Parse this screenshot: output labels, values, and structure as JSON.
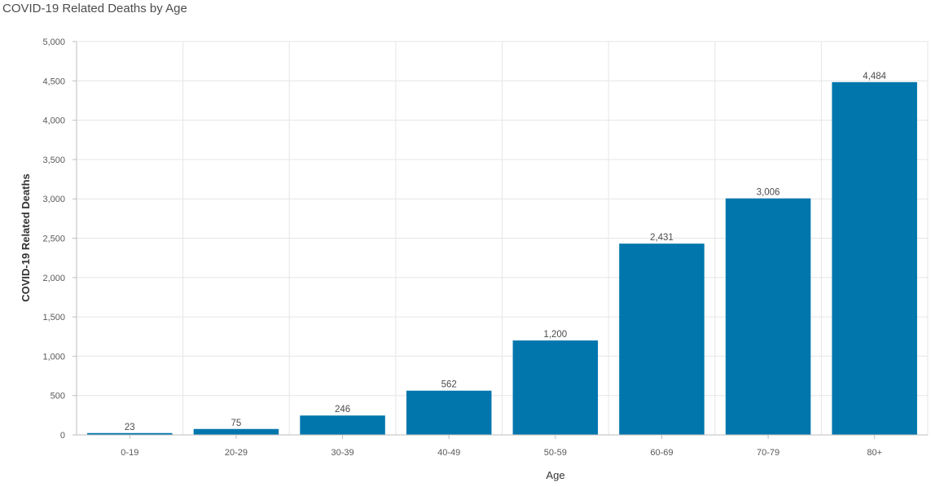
{
  "chart_data": {
    "type": "bar",
    "title": "COVID-19 Related Deaths by Age",
    "xlabel": "Age",
    "ylabel": "COVID-19 Related Deaths",
    "categories": [
      "0-19",
      "20-29",
      "30-39",
      "40-49",
      "50-59",
      "60-69",
      "70-79",
      "80+"
    ],
    "values": [
      23,
      75,
      246,
      562,
      1200,
      2431,
      3006,
      4484
    ],
    "data_labels": [
      "23",
      "75",
      "246",
      "562",
      "1,200",
      "2,431",
      "3,006",
      "4,484"
    ],
    "ylim": [
      0,
      5000
    ],
    "yticks": [
      0,
      500,
      1000,
      1500,
      2000,
      2500,
      3000,
      3500,
      4000,
      4500,
      5000
    ],
    "ytick_labels": [
      "0",
      "500",
      "1,000",
      "1,500",
      "2,000",
      "2,500",
      "3,000",
      "3,500",
      "4,000",
      "4,500",
      "5,000"
    ],
    "grid": true,
    "bar_color": "#0076ad",
    "grid_color": "#e6e6e6"
  }
}
